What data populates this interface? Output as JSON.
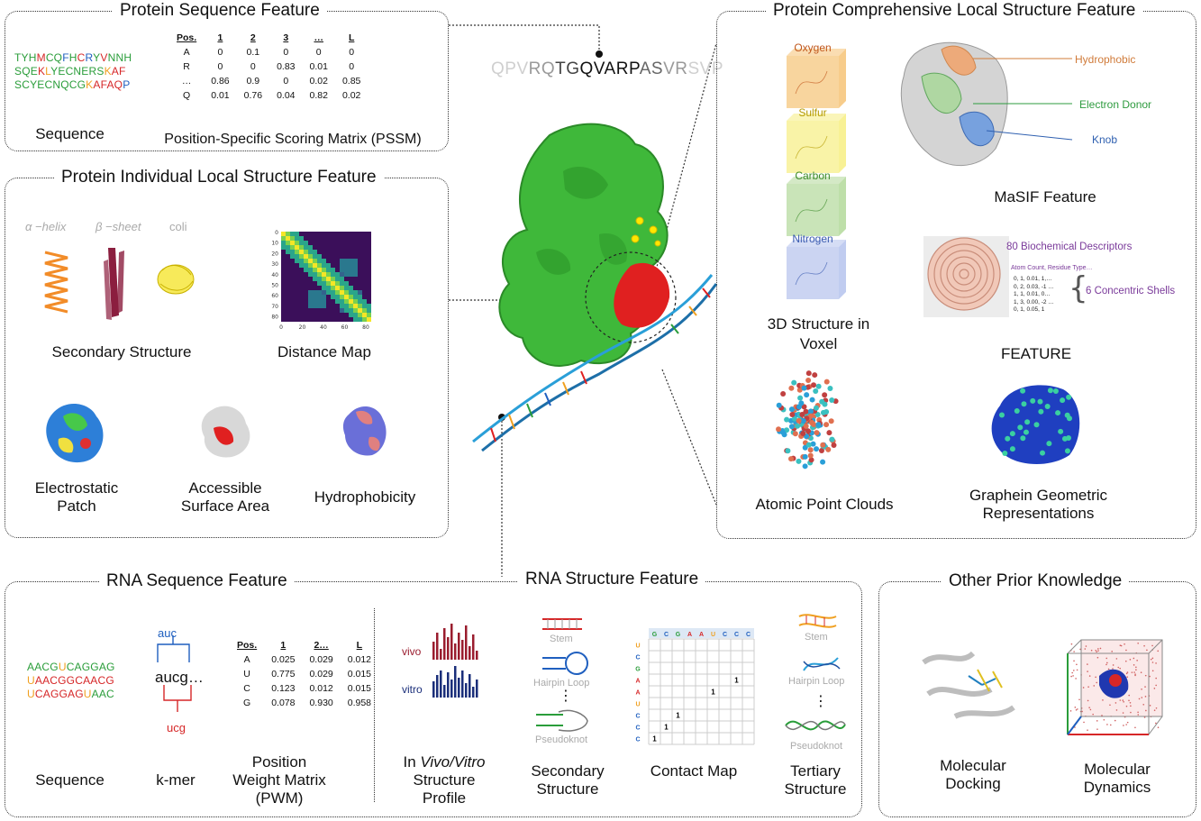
{
  "protein_seq": {
    "title": "Protein Sequence Feature",
    "seq_lines": [
      [
        [
          "TYH",
          "#2a9d3a"
        ],
        [
          "M",
          "#d62728"
        ],
        [
          "CQ",
          "#2a9d3a"
        ],
        [
          "F",
          "#1f5fbf"
        ],
        [
          "H",
          "#2a9d3a"
        ],
        [
          "C",
          "#d62728"
        ],
        [
          "R",
          "#1f5fbf"
        ],
        [
          "Y",
          "#2a9d3a"
        ],
        [
          "V",
          "#d62728"
        ],
        [
          "NNH",
          "#2a9d3a"
        ]
      ],
      [
        [
          "SQE",
          "#2a9d3a"
        ],
        [
          "K",
          "#d62728"
        ],
        [
          "L",
          "#f0a020"
        ],
        [
          "YECNERS",
          "#2a9d3a"
        ],
        [
          "K",
          "#f0a020"
        ],
        [
          "AF",
          "#d62728"
        ]
      ],
      [
        [
          "SCYECNQCG",
          "#2a9d3a"
        ],
        [
          "K",
          "#f0a020"
        ],
        [
          "AFAQ",
          "#d62728"
        ],
        [
          "P",
          "#1f5fbf"
        ]
      ]
    ],
    "seq_label": "Sequence",
    "pssm_header": [
      "Pos.",
      "1",
      "2",
      "3",
      "…",
      "L"
    ],
    "pssm_rows": [
      [
        "A",
        "0",
        "0.1",
        "0",
        "0",
        "0"
      ],
      [
        "R",
        "0",
        "0",
        "0.83",
        "0.01",
        "0"
      ],
      [
        "…",
        "0.86",
        "0.9",
        "0",
        "0.02",
        "0.85"
      ],
      [
        "Q",
        "0.01",
        "0.76",
        "0.04",
        "0.82",
        "0.02"
      ]
    ],
    "pssm_label": "Position-Specific Scoring Matrix (PSSM)"
  },
  "center": {
    "sequence_segments": [
      [
        "QPV",
        "#cfcfcf"
      ],
      [
        "RQ",
        "#9a9a9a"
      ],
      [
        "TG",
        "#444"
      ],
      [
        "QVARP",
        "#111"
      ],
      [
        "AS",
        "#666"
      ],
      [
        "VR",
        "#9a9a9a"
      ],
      [
        "SVP",
        "#cfcfcf"
      ]
    ]
  },
  "protein_ind": {
    "title": "Protein Individual Local Structure Feature",
    "ss_labels": [
      "α −helix",
      "β −sheet",
      "coli"
    ],
    "secondary_label": "Secondary Structure",
    "distance_label": "Distance Map",
    "dm_ticks": [
      "0",
      "10",
      "20",
      "30",
      "40",
      "50",
      "60",
      "70",
      "80"
    ],
    "dm_xticks": [
      "0",
      "20",
      "40",
      "60",
      "80"
    ],
    "electro_label": "Electrostatic Patch",
    "asa_label": "Accessible Surface Area",
    "hydro_label": "Hydrophobicity"
  },
  "protein_comp": {
    "title": "Protein Comprehensive Local Structure Feature",
    "voxels": [
      {
        "label": "Oxygen",
        "color": "#f6c77e",
        "text": "#c0561b"
      },
      {
        "label": "Sulfur",
        "color": "#f7ef8a",
        "text": "#b49a00"
      },
      {
        "label": "Carbon",
        "color": "#b7dba0",
        "text": "#3c8a2a"
      },
      {
        "label": "Nitrogen",
        "color": "#b9c6ee",
        "text": "#3a5bb0"
      }
    ],
    "voxel_label": "3D Structure in Voxel",
    "masif_tags": [
      "Hydrophobic",
      "Electron Donor",
      "Knob"
    ],
    "masif_label": "MaSIF Feature",
    "feature_desc": "80 Biochemical Descriptors",
    "feature_cols": "Atom Count, Residue Type…",
    "feature_rows": [
      "0, 1, 0.01,  1,…",
      "0, 2, 0.03, -1 …",
      "1, 1, 0.01,  0…",
      "1, 3, 0.00,  -2 …",
      "0, 1, 0.05,  1"
    ],
    "feature_shells": "6 Concentric Shells",
    "feature_label": "FEATURE",
    "apc_label": "Atomic Point Clouds",
    "graphein_label": "Graphein Geometric Representations"
  },
  "rna_seq": {
    "title": "RNA Sequence Feature",
    "seq_lines": [
      [
        [
          "AACG",
          "#2a9d3a"
        ],
        [
          "U",
          "#f0a020"
        ],
        [
          "CAGGAG",
          "#2a9d3a"
        ]
      ],
      [
        [
          "U",
          "#f0a020"
        ],
        [
          "AACGGCAACG",
          "#d62728"
        ]
      ],
      [
        [
          "U",
          "#f0a020"
        ],
        [
          "CAGGAG",
          "#d62728"
        ],
        [
          "U",
          "#f0a020"
        ],
        [
          "AAC",
          "#2a9d3a"
        ]
      ]
    ],
    "seq_label": "Sequence",
    "kmer_top": "auc",
    "kmer_mid": "aucg…",
    "kmer_bot": "ucg",
    "kmer_label": "k-mer",
    "pwm_header": [
      "Pos.",
      "1",
      "2…",
      "L"
    ],
    "pwm_rows": [
      [
        "A",
        "0.025",
        "0.029",
        "0.012"
      ],
      [
        "U",
        "0.775",
        "0.029",
        "0.015"
      ],
      [
        "C",
        "0.123",
        "0.012",
        "0.015"
      ],
      [
        "G",
        "0.078",
        "0.930",
        "0.958"
      ]
    ],
    "pwm_label": "Position Weight Matrix (PWM)"
  },
  "rna_struct": {
    "title": "RNA Structure Feature",
    "vivo": "vivo",
    "vitro": "vitro",
    "profile_label_1": "In ",
    "profile_label_2": "Vivo/Vitro",
    "profile_label_3": "Structure Profile",
    "stem": "Stem",
    "hairpin": "Hairpin Loop",
    "pseudoknot": "Pseudoknot",
    "dots": "⋮",
    "secondary_label": "Secondary Structure",
    "cm_top": [
      "G",
      "C",
      "G",
      "A",
      "A",
      "U",
      "C",
      "C",
      "C"
    ],
    "cm_side": [
      "U",
      "C",
      "G",
      "A",
      "A",
      "U",
      "C",
      "C",
      "C"
    ],
    "cm_one": "1",
    "contact_label": "Contact Map",
    "tertiary_label": "Tertiary Structure"
  },
  "other": {
    "title": "Other Prior Knowledge",
    "docking_label": "Molecular Docking",
    "dynamics_label": "Molecular Dynamics"
  }
}
